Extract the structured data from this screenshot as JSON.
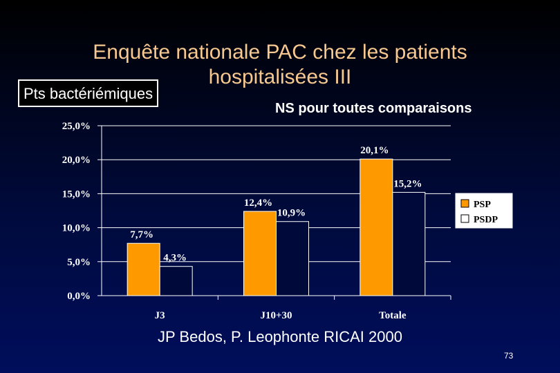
{
  "slide": {
    "title": "Enquête nationale PAC chez les patients hospitalisées III",
    "tag": "Pts bactériémiques",
    "note": "NS pour toutes comparaisons",
    "source": "JP Bedos, P. Leophonte RICAI 2000",
    "page_number": "73"
  },
  "chart_data": {
    "type": "bar",
    "categories": [
      "J3",
      "J10+30",
      "Totale"
    ],
    "series": [
      {
        "name": "PSP",
        "values": [
          7.7,
          12.4,
          20.1
        ],
        "labels": [
          "7,7%",
          "12,4%",
          "20,1%"
        ],
        "color": "#ff9900"
      },
      {
        "name": "PSDP",
        "values": [
          4.3,
          10.9,
          15.2
        ],
        "labels": [
          "4,3%",
          "10,9%",
          "15,2%"
        ],
        "color": "#000a3a"
      }
    ],
    "ylim": [
      0,
      25
    ],
    "yticks": [
      0,
      5,
      10,
      15,
      20,
      25
    ],
    "ytick_labels": [
      "0,0%",
      "5,0%",
      "10,0%",
      "15,0%",
      "20,0%",
      "25,0%"
    ],
    "title": "",
    "xlabel": "",
    "ylabel": "",
    "grid": true,
    "legend_position": "right"
  }
}
